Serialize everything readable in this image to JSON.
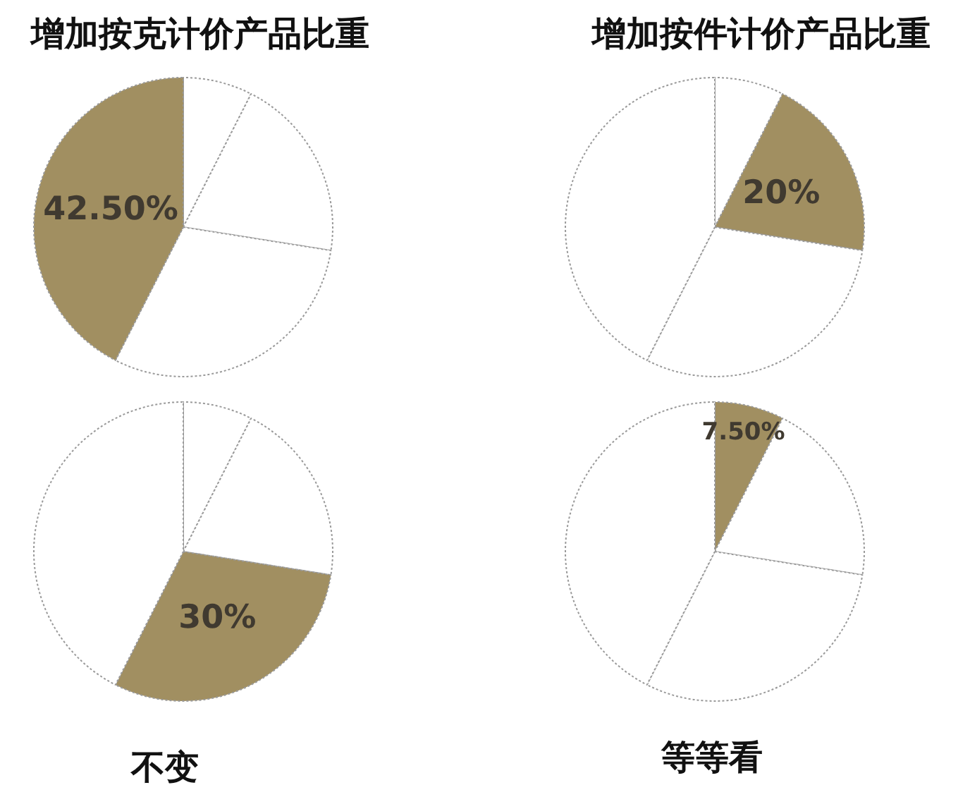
{
  "chart_data": [
    {
      "type": "pie",
      "title": "增加按克计价产品比重",
      "categories": [
        null,
        null,
        null,
        null
      ],
      "values": [
        7.5,
        20,
        30,
        42.5
      ],
      "colors": [
        "#ffffff",
        "#ffffff",
        "#ffffff",
        "#a18f61"
      ],
      "value_labels": [
        null,
        null,
        null,
        "42.50%"
      ]
    },
    {
      "type": "pie",
      "title": "增加按件计价产品比重",
      "categories": [
        null,
        null,
        null,
        null
      ],
      "values": [
        7.5,
        20,
        30,
        42.5
      ],
      "colors": [
        "#ffffff",
        "#a18f61",
        "#ffffff",
        "#ffffff"
      ],
      "value_labels": [
        null,
        "20%",
        null,
        null
      ]
    },
    {
      "type": "pie",
      "title": "不变",
      "categories": [
        null,
        null,
        null,
        null
      ],
      "values": [
        7.5,
        20,
        30,
        42.5
      ],
      "colors": [
        "#ffffff",
        "#ffffff",
        "#a18f61",
        "#ffffff"
      ],
      "value_labels": [
        null,
        null,
        "30%",
        null
      ]
    },
    {
      "type": "pie",
      "title": "等等看",
      "categories": [
        null,
        null,
        null,
        null
      ],
      "values": [
        7.5,
        20,
        30,
        42.5
      ],
      "colors": [
        "#a18f61",
        "#ffffff",
        "#ffffff",
        "#ffffff"
      ],
      "value_labels": [
        "7.50%",
        null,
        null,
        null
      ]
    }
  ]
}
